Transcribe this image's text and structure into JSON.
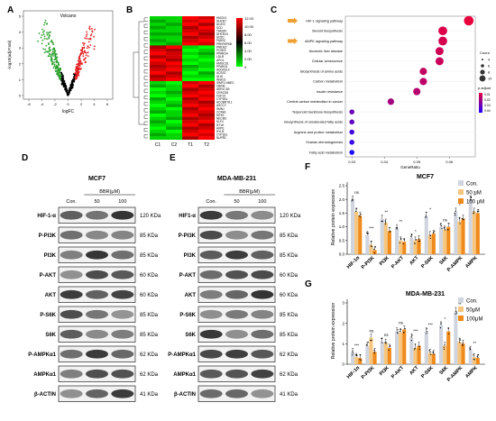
{
  "panels": {
    "A": {
      "letter": "A",
      "title": "Volcano",
      "xlabel": "logFC",
      "ylabel": "-log10(adj.P.Val)",
      "xticks": [
        "-6",
        "-4",
        "-2",
        "0",
        "2",
        "4",
        "6"
      ],
      "yticks": [
        "0",
        "1",
        "2",
        "3",
        "4",
        "5"
      ],
      "colors": {
        "up": "#e31a1c",
        "down": "#2ca02c",
        "ns": "#000000"
      }
    },
    "B": {
      "letter": "B",
      "columns": [
        "C1",
        "C2",
        "T1",
        "T2"
      ],
      "genes": [
        "HMGX1",
        "DHCR7",
        "ACAT2",
        "SCD",
        "THEM4",
        "DHCR24",
        "SC5D",
        "FADS2",
        "PRKRSF6B",
        "PRIDE2",
        "PCSK9",
        "PPARG4",
        "LDLR",
        "APOL",
        "HMGCS1",
        "PPARG1",
        "ADGFEL4",
        "ACSS2",
        "ID1D",
        "INSIG1",
        "SIMF1-NME2",
        "CBRM",
        "AKR1C1B",
        "CRSCS8",
        "FGF19",
        "CYP1B1",
        "ACOBR78.1",
        "ASCCY",
        "SMN1",
        "CCNA1",
        "MT4S",
        "NECBS",
        "KLF4",
        "NT1H",
        "AVPI1",
        "HYLB",
        "CYP1B1",
        "NUPR1"
      ],
      "scale_ticks": [
        "12.00",
        "10.00",
        "8.00",
        "6.00",
        "4.00",
        "2.00",
        "0"
      ],
      "colors": {
        "high": "#ff0000",
        "mid": "#000000",
        "low": "#00ff00"
      }
    },
    "C": {
      "letter": "C",
      "xlabel": "GeneRatio",
      "xticks": [
        "0.03",
        "0.04",
        "0.05",
        "0.06"
      ],
      "size_legend_title": "Count",
      "size_legend_values": [
        "4",
        "6",
        "8",
        "10"
      ],
      "color_legend_title": "p.adjust",
      "color_legend_values": [
        "0.01",
        "0.02",
        "0.03",
        "0.04"
      ],
      "colors": {
        "low": "#e8003c",
        "high": "#2000ff",
        "arrow": "#f0a030"
      }
    },
    "D": {
      "letter": "D",
      "title": "MCF7",
      "treatment": "BBR(μM)",
      "lanes": [
        "Con.",
        "50",
        "100"
      ],
      "bands": [
        {
          "label": "HIF-1-α",
          "kda": "120 KDa",
          "seed": 1
        },
        {
          "label": "P-PI3K",
          "kda": "85 KDa",
          "seed": 2
        },
        {
          "label": "PI3K",
          "kda": "85 KDa",
          "seed": 3
        },
        {
          "label": "P-AKT",
          "kda": "60 KDa",
          "seed": 4
        },
        {
          "label": "AKT",
          "kda": "60 KDa",
          "seed": 5
        },
        {
          "label": "P-S6K",
          "kda": "85 KDa",
          "seed": 6
        },
        {
          "label": "S6K",
          "kda": "85 KDa",
          "seed": 7
        },
        {
          "label": "P-AMPKα1",
          "kda": "62 KDa",
          "seed": 8
        },
        {
          "label": "AMPKα1",
          "kda": "62 KDa",
          "seed": 9
        },
        {
          "label": "β-ACTIN",
          "kda": "41 KDa",
          "seed": 10
        }
      ]
    },
    "E": {
      "letter": "E",
      "title": "MDA-MB-231",
      "treatment": "BBR(μM)",
      "lanes": [
        "Con.",
        "50",
        "100"
      ],
      "bands": [
        {
          "label": "HIF1-α",
          "kda": "120 KDa",
          "seed": 11
        },
        {
          "label": "P-PI3K",
          "kda": "85 KDa",
          "seed": 12
        },
        {
          "label": "PI3K",
          "kda": "85 KDa",
          "seed": 13
        },
        {
          "label": "P-AKT",
          "kda": "60 KDa",
          "seed": 14
        },
        {
          "label": "AKT",
          "kda": "60 KDa",
          "seed": 15
        },
        {
          "label": "P-S6K",
          "kda": "85 KDa",
          "seed": 16
        },
        {
          "label": "S6K",
          "kda": "85 KDa",
          "seed": 17
        },
        {
          "label": "P-AMPKα1",
          "kda": "62 KDa",
          "seed": 18
        },
        {
          "label": "AMPKα1",
          "kda": "62 KDa",
          "seed": 19
        },
        {
          "label": "β-ACTIN",
          "kda": "41 KDa",
          "seed": 20
        }
      ]
    },
    "F": {
      "letter": "F"
    },
    "G": {
      "letter": "G"
    }
  },
  "chart_data": [
    {
      "type": "heatmap",
      "panel": "B",
      "columns": [
        "C1",
        "C2",
        "T1",
        "T2"
      ],
      "rows": [
        "HMGX1",
        "DHCR7",
        "ACAT2",
        "SCD",
        "THEM4",
        "DHCR24",
        "SC5D",
        "FADS2",
        "PRKRSF6B",
        "PRIDE2",
        "PCSK9",
        "PPARG4",
        "LDLR",
        "APOL",
        "HMGCS1",
        "PPARG1",
        "ADGFEL4",
        "ACSS2",
        "ID1D",
        "INSIG1",
        "SIMF1-NME2",
        "CBRM",
        "AKR1C1B",
        "CRSCS8",
        "FGF19",
        "CYP1B1",
        "ACOBR78.1",
        "ASCCY",
        "SMN1",
        "CCNA1",
        "MT4S",
        "NECBS",
        "KLF4",
        "NT1H",
        "AVPI1",
        "HYLB",
        "CYP1B1",
        "NUPR1"
      ],
      "values": [
        [
          1,
          1,
          12,
          11
        ],
        [
          2,
          1,
          11,
          12
        ],
        [
          1,
          2,
          12,
          10
        ],
        [
          2,
          1,
          10,
          12
        ],
        [
          1,
          1,
          11,
          11
        ],
        [
          2,
          2,
          12,
          10
        ],
        [
          1,
          1,
          10,
          11
        ],
        [
          2,
          1,
          11,
          12
        ],
        [
          1,
          2,
          12,
          11
        ],
        [
          10,
          12,
          1,
          0
        ],
        [
          11,
          10,
          0,
          1
        ],
        [
          12,
          11,
          1,
          2
        ],
        [
          10,
          11,
          0,
          1
        ],
        [
          12,
          10,
          1,
          0
        ],
        [
          11,
          12,
          0,
          1
        ],
        [
          10,
          11,
          2,
          1
        ],
        [
          11,
          12,
          1,
          0
        ],
        [
          12,
          10,
          0,
          2
        ],
        [
          10,
          11,
          1,
          1
        ],
        [
          11,
          12,
          0,
          0
        ],
        [
          1,
          0,
          11,
          12
        ],
        [
          2,
          1,
          12,
          10
        ],
        [
          0,
          1,
          10,
          11
        ],
        [
          1,
          2,
          11,
          12
        ],
        [
          0,
          1,
          12,
          11
        ],
        [
          2,
          0,
          10,
          12
        ],
        [
          1,
          1,
          11,
          10
        ],
        [
          0,
          2,
          12,
          11
        ],
        [
          1,
          0,
          10,
          12
        ],
        [
          2,
          1,
          11,
          11
        ],
        [
          0,
          1,
          12,
          10
        ],
        [
          1,
          2,
          10,
          11
        ],
        [
          2,
          0,
          11,
          12
        ],
        [
          1,
          1,
          12,
          10
        ],
        [
          0,
          2,
          10,
          11
        ],
        [
          1,
          0,
          11,
          12
        ],
        [
          2,
          1,
          12,
          11
        ],
        [
          1,
          1,
          10,
          12
        ]
      ],
      "scale": [
        0,
        12
      ]
    },
    {
      "type": "scatter",
      "panel": "C",
      "xlabel": "GeneRatio",
      "xlim": [
        0.028,
        0.068
      ],
      "terms": [
        {
          "name": "HIF-1 signaling pathway",
          "x": 0.066,
          "count": 10,
          "p": 0.01,
          "arrow": true
        },
        {
          "name": "Steroid biosynthesis",
          "x": 0.058,
          "count": 9,
          "p": 0.012
        },
        {
          "name": "AMPK signaling pathway",
          "x": 0.058,
          "count": 9,
          "p": 0.013,
          "arrow": true
        },
        {
          "name": "Alcoholic liver disease",
          "x": 0.057,
          "count": 8,
          "p": 0.014
        },
        {
          "name": "Cellular senescence",
          "x": 0.057,
          "count": 8,
          "p": 0.015
        },
        {
          "name": "Biosynthesis of amino acids",
          "x": 0.052,
          "count": 7,
          "p": 0.016
        },
        {
          "name": "Carbon metabolism",
          "x": 0.052,
          "count": 7,
          "p": 0.017
        },
        {
          "name": "Insulin resistance",
          "x": 0.05,
          "count": 7,
          "p": 0.018
        },
        {
          "name": "Central carbon metabolism in cancer",
          "x": 0.042,
          "count": 6,
          "p": 0.021
        },
        {
          "name": "Terpenoid backbone biosynthesis",
          "x": 0.03,
          "count": 4,
          "p": 0.03
        },
        {
          "name": "Biosynthesis of unsaturated fatty acids",
          "x": 0.03,
          "count": 4,
          "p": 0.032
        },
        {
          "name": "Arginine and proline metabolism",
          "x": 0.03,
          "count": 4,
          "p": 0.036
        },
        {
          "name": "Ovarian steroidogenesis",
          "x": 0.03,
          "count": 4,
          "p": 0.038
        },
        {
          "name": "Fatty acid metabolism",
          "x": 0.03,
          "count": 4,
          "p": 0.042
        }
      ]
    },
    {
      "type": "bar",
      "panel": "F",
      "title": "MCF7",
      "ylabel": "Relative protein expression",
      "ylim": [
        0,
        2.5
      ],
      "yticks": [
        "0.0",
        "0.5",
        "1.0",
        "1.5",
        "2.0",
        "2.5"
      ],
      "categories": [
        "HIF-1α",
        "P-PI3K",
        "PI3K",
        "P-AKT",
        "AKT",
        "P-S6K",
        "S6K",
        "P-AMPK",
        "AMPK"
      ],
      "series": [
        {
          "name": "Con.",
          "color": "#d0d4de",
          "values": [
            2.0,
            0.7,
            1.3,
            0.95,
            0.6,
            1.4,
            1.0,
            1.55,
            2.0
          ]
        },
        {
          "name": "50 μM",
          "color": "#f6c67e",
          "values": [
            1.55,
            0.35,
            1.15,
            0.5,
            0.5,
            0.7,
            0.9,
            1.2,
            1.55
          ]
        },
        {
          "name": "100 μM",
          "color": "#ef8a1c",
          "values": [
            1.4,
            0.15,
            0.85,
            0.45,
            0.55,
            0.75,
            1.0,
            1.3,
            1.5
          ]
        }
      ],
      "annotations": [
        "ns",
        "***",
        "**",
        "**",
        "*",
        "*",
        "ns",
        "*",
        "*"
      ]
    },
    {
      "type": "bar",
      "panel": "G",
      "title": "MDA-MB-231",
      "ylabel": "Relative protein expression",
      "ylim": [
        0,
        3
      ],
      "yticks": [
        "0",
        "1",
        "2",
        "3"
      ],
      "categories": [
        "HIF-1α",
        "P-PI3K",
        "PI3K",
        "P-AKT",
        "AKT",
        "P-S6K",
        "S6K",
        "P-AMPK",
        "AMPK"
      ],
      "series": [
        {
          "name": "Con.",
          "color": "#d0d4de",
          "values": [
            0.6,
            0.9,
            1.1,
            1.6,
            1.3,
            1.6,
            1.9,
            2.6,
            0.7
          ]
        },
        {
          "name": "50μM",
          "color": "#f6c67e",
          "values": [
            0.35,
            1.3,
            1.05,
            1.55,
            0.8,
            0.55,
            0.9,
            1.1,
            0.35
          ]
        },
        {
          "name": "100μM",
          "color": "#ef8a1c",
          "values": [
            0.3,
            0.6,
            0.8,
            1.7,
            0.9,
            0.5,
            1.6,
            1.0,
            0.3
          ]
        }
      ],
      "annotations": [
        "***",
        "ns",
        "ns",
        "ns",
        "***",
        "***",
        "*",
        "**",
        "**"
      ]
    }
  ]
}
